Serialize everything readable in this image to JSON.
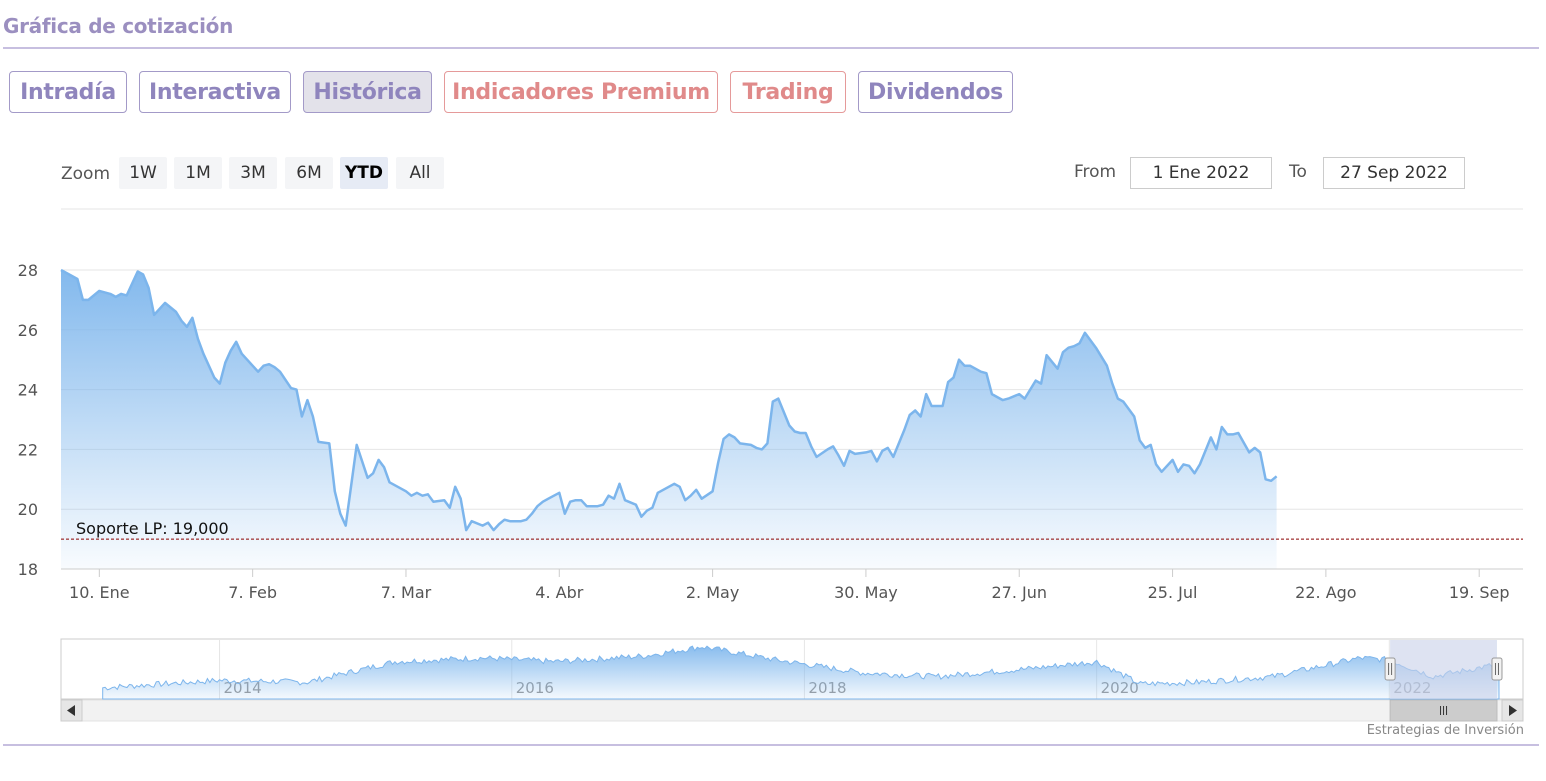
{
  "section_title": "Gráfica de cotización",
  "tabs": [
    {
      "label": "Intradía",
      "active": false,
      "premium": false
    },
    {
      "label": "Interactiva",
      "active": false,
      "premium": false
    },
    {
      "label": "Histórica",
      "active": true,
      "premium": false
    },
    {
      "label": "Indicadores Premium",
      "active": false,
      "premium": true
    },
    {
      "label": "Trading",
      "active": false,
      "premium": true
    },
    {
      "label": "Dividendos",
      "active": false,
      "premium": false
    }
  ],
  "zoom": {
    "label": "Zoom",
    "buttons": [
      "1W",
      "1M",
      "3M",
      "6M",
      "YTD",
      "All"
    ],
    "selected": "YTD"
  },
  "range": {
    "from_label": "From",
    "from_value": "1 Ene 2022",
    "to_label": "To",
    "to_value": "27 Sep 2022"
  },
  "colors": {
    "line": "#7cb5ec",
    "support_line": "#8b0000",
    "navigator_mask": "#c8d0ea"
  },
  "chart_data": {
    "type": "area",
    "title": "",
    "xlabel": "",
    "ylabel": "",
    "ylim": [
      18,
      28
    ],
    "yticks": [
      18,
      20,
      22,
      24,
      26,
      28
    ],
    "x_range": [
      "2022-01-03",
      "2022-09-27"
    ],
    "xtick_labels": [
      {
        "date": "2022-01-10",
        "label": "10. Ene"
      },
      {
        "date": "2022-02-07",
        "label": "7. Feb"
      },
      {
        "date": "2022-03-07",
        "label": "7. Mar"
      },
      {
        "date": "2022-04-04",
        "label": "4. Abr"
      },
      {
        "date": "2022-05-02",
        "label": "2. May"
      },
      {
        "date": "2022-05-30",
        "label": "30. May"
      },
      {
        "date": "2022-06-27",
        "label": "27. Jun"
      },
      {
        "date": "2022-07-25",
        "label": "25. Jul"
      },
      {
        "date": "2022-08-22",
        "label": "22. Ago"
      },
      {
        "date": "2022-09-19",
        "label": "19. Sep"
      }
    ],
    "grid": true,
    "series": [
      {
        "name": "",
        "points": [
          [
            "2022-01-03",
            28.0
          ],
          [
            "2022-01-04",
            27.9
          ],
          [
            "2022-01-05",
            27.8
          ],
          [
            "2022-01-06",
            27.7
          ],
          [
            "2022-01-07",
            27.0
          ],
          [
            "2022-01-08",
            27.0
          ],
          [
            "2022-01-10",
            27.3
          ],
          [
            "2022-01-11",
            27.25
          ],
          [
            "2022-01-12",
            27.2
          ],
          [
            "2022-01-13",
            27.1
          ],
          [
            "2022-01-14",
            27.2
          ],
          [
            "2022-01-15",
            27.15
          ],
          [
            "2022-01-17",
            27.95
          ],
          [
            "2022-01-18",
            27.85
          ],
          [
            "2022-01-19",
            27.4
          ],
          [
            "2022-01-20",
            26.5
          ],
          [
            "2022-01-21",
            26.7
          ],
          [
            "2022-01-22",
            26.9
          ],
          [
            "2022-01-24",
            26.6
          ],
          [
            "2022-01-25",
            26.3
          ],
          [
            "2022-01-26",
            26.1
          ],
          [
            "2022-01-27",
            26.4
          ],
          [
            "2022-01-28",
            25.7
          ],
          [
            "2022-01-29",
            25.2
          ],
          [
            "2022-01-31",
            24.4
          ],
          [
            "2022-02-01",
            24.2
          ],
          [
            "2022-02-02",
            24.9
          ],
          [
            "2022-02-03",
            25.3
          ],
          [
            "2022-02-04",
            25.6
          ],
          [
            "2022-02-05",
            25.2
          ],
          [
            "2022-02-07",
            24.8
          ],
          [
            "2022-02-08",
            24.6
          ],
          [
            "2022-02-09",
            24.8
          ],
          [
            "2022-02-10",
            24.85
          ],
          [
            "2022-02-11",
            24.75
          ],
          [
            "2022-02-12",
            24.6
          ],
          [
            "2022-02-14",
            24.05
          ],
          [
            "2022-02-15",
            24.0
          ],
          [
            "2022-02-16",
            23.1
          ],
          [
            "2022-02-17",
            23.65
          ],
          [
            "2022-02-18",
            23.1
          ],
          [
            "2022-02-19",
            22.25
          ],
          [
            "2022-02-21",
            22.2
          ],
          [
            "2022-02-22",
            20.6
          ],
          [
            "2022-02-23",
            19.85
          ],
          [
            "2022-02-24",
            19.45
          ],
          [
            "2022-02-25",
            20.8
          ],
          [
            "2022-02-26",
            22.15
          ],
          [
            "2022-02-28",
            21.05
          ],
          [
            "2022-03-01",
            21.2
          ],
          [
            "2022-03-02",
            21.65
          ],
          [
            "2022-03-03",
            21.4
          ],
          [
            "2022-03-04",
            20.9
          ],
          [
            "2022-03-07",
            20.6
          ],
          [
            "2022-03-08",
            20.45
          ],
          [
            "2022-03-09",
            20.55
          ],
          [
            "2022-03-10",
            20.45
          ],
          [
            "2022-03-11",
            20.5
          ],
          [
            "2022-03-12",
            20.25
          ],
          [
            "2022-03-14",
            20.3
          ],
          [
            "2022-03-15",
            20.05
          ],
          [
            "2022-03-16",
            20.75
          ],
          [
            "2022-03-17",
            20.35
          ],
          [
            "2022-03-18",
            19.3
          ],
          [
            "2022-03-19",
            19.6
          ],
          [
            "2022-03-21",
            19.45
          ],
          [
            "2022-03-22",
            19.55
          ],
          [
            "2022-03-23",
            19.3
          ],
          [
            "2022-03-24",
            19.5
          ],
          [
            "2022-03-25",
            19.65
          ],
          [
            "2022-03-26",
            19.6
          ],
          [
            "2022-03-28",
            19.6
          ],
          [
            "2022-03-29",
            19.65
          ],
          [
            "2022-03-30",
            19.85
          ],
          [
            "2022-03-31",
            20.1
          ],
          [
            "2022-04-01",
            20.25
          ],
          [
            "2022-04-02",
            20.35
          ],
          [
            "2022-04-04",
            20.55
          ],
          [
            "2022-04-05",
            19.85
          ],
          [
            "2022-04-06",
            20.25
          ],
          [
            "2022-04-07",
            20.3
          ],
          [
            "2022-04-08",
            20.3
          ],
          [
            "2022-04-09",
            20.1
          ],
          [
            "2022-04-11",
            20.1
          ],
          [
            "2022-04-12",
            20.15
          ],
          [
            "2022-04-13",
            20.45
          ],
          [
            "2022-04-14",
            20.35
          ],
          [
            "2022-04-15",
            20.85
          ],
          [
            "2022-04-16",
            20.3
          ],
          [
            "2022-04-18",
            20.15
          ],
          [
            "2022-04-19",
            19.75
          ],
          [
            "2022-04-20",
            19.95
          ],
          [
            "2022-04-21",
            20.05
          ],
          [
            "2022-04-22",
            20.55
          ],
          [
            "2022-04-23",
            20.65
          ],
          [
            "2022-04-25",
            20.85
          ],
          [
            "2022-04-26",
            20.75
          ],
          [
            "2022-04-27",
            20.3
          ],
          [
            "2022-04-28",
            20.45
          ],
          [
            "2022-04-29",
            20.65
          ],
          [
            "2022-04-30",
            20.35
          ],
          [
            "2022-05-02",
            20.6
          ],
          [
            "2022-05-03",
            21.55
          ],
          [
            "2022-05-04",
            22.35
          ],
          [
            "2022-05-05",
            22.5
          ],
          [
            "2022-05-06",
            22.4
          ],
          [
            "2022-05-07",
            22.2
          ],
          [
            "2022-05-09",
            22.15
          ],
          [
            "2022-05-10",
            22.05
          ],
          [
            "2022-05-11",
            22.0
          ],
          [
            "2022-05-12",
            22.2
          ],
          [
            "2022-05-13",
            23.6
          ],
          [
            "2022-05-14",
            23.7
          ],
          [
            "2022-05-16",
            22.8
          ],
          [
            "2022-05-17",
            22.6
          ],
          [
            "2022-05-18",
            22.55
          ],
          [
            "2022-05-19",
            22.55
          ],
          [
            "2022-05-20",
            22.1
          ],
          [
            "2022-05-21",
            21.75
          ],
          [
            "2022-05-23",
            22.0
          ],
          [
            "2022-05-24",
            22.1
          ],
          [
            "2022-05-25",
            21.8
          ],
          [
            "2022-05-26",
            21.45
          ],
          [
            "2022-05-27",
            21.95
          ],
          [
            "2022-05-28",
            21.85
          ],
          [
            "2022-05-30",
            21.9
          ],
          [
            "2022-05-31",
            21.95
          ],
          [
            "2022-06-01",
            21.6
          ],
          [
            "2022-06-02",
            21.95
          ],
          [
            "2022-06-03",
            22.05
          ],
          [
            "2022-06-04",
            21.75
          ],
          [
            "2022-06-06",
            22.65
          ],
          [
            "2022-06-07",
            23.15
          ],
          [
            "2022-06-08",
            23.3
          ],
          [
            "2022-06-09",
            23.1
          ],
          [
            "2022-06-10",
            23.85
          ],
          [
            "2022-06-11",
            23.45
          ],
          [
            "2022-06-13",
            23.45
          ],
          [
            "2022-06-14",
            24.25
          ],
          [
            "2022-06-15",
            24.4
          ],
          [
            "2022-06-16",
            25.0
          ],
          [
            "2022-06-17",
            24.8
          ],
          [
            "2022-06-18",
            24.8
          ],
          [
            "2022-06-20",
            24.6
          ],
          [
            "2022-06-21",
            24.55
          ],
          [
            "2022-06-22",
            23.85
          ],
          [
            "2022-06-23",
            23.75
          ],
          [
            "2022-06-24",
            23.65
          ],
          [
            "2022-06-25",
            23.7
          ],
          [
            "2022-06-27",
            23.85
          ],
          [
            "2022-06-28",
            23.7
          ],
          [
            "2022-06-29",
            24.0
          ],
          [
            "2022-06-30",
            24.3
          ],
          [
            "2022-07-01",
            24.2
          ],
          [
            "2022-07-02",
            25.15
          ],
          [
            "2022-07-04",
            24.7
          ],
          [
            "2022-07-05",
            25.25
          ],
          [
            "2022-07-06",
            25.4
          ],
          [
            "2022-07-07",
            25.45
          ],
          [
            "2022-07-08",
            25.55
          ],
          [
            "2022-07-09",
            25.9
          ],
          [
            "2022-07-11",
            25.4
          ],
          [
            "2022-07-12",
            25.1
          ],
          [
            "2022-07-13",
            24.8
          ],
          [
            "2022-07-14",
            24.2
          ],
          [
            "2022-07-15",
            23.7
          ],
          [
            "2022-07-16",
            23.6
          ],
          [
            "2022-07-18",
            23.1
          ],
          [
            "2022-07-19",
            22.3
          ],
          [
            "2022-07-20",
            22.05
          ],
          [
            "2022-07-21",
            22.15
          ],
          [
            "2022-07-22",
            21.5
          ],
          [
            "2022-07-23",
            21.25
          ],
          [
            "2022-07-25",
            21.65
          ],
          [
            "2022-07-26",
            21.25
          ],
          [
            "2022-07-27",
            21.5
          ],
          [
            "2022-07-28",
            21.45
          ],
          [
            "2022-07-29",
            21.2
          ],
          [
            "2022-07-30",
            21.5
          ],
          [
            "2022-08-01",
            22.4
          ],
          [
            "2022-08-02",
            22.0
          ],
          [
            "2022-08-03",
            22.75
          ],
          [
            "2022-08-04",
            22.5
          ],
          [
            "2022-08-05",
            22.5
          ],
          [
            "2022-08-06",
            22.55
          ],
          [
            "2022-08-08",
            21.9
          ],
          [
            "2022-08-09",
            22.05
          ],
          [
            "2022-08-10",
            21.9
          ],
          [
            "2022-08-11",
            21.0
          ],
          [
            "2022-08-12",
            20.95
          ],
          [
            "2022-08-13",
            21.1
          ]
        ]
      }
    ],
    "annotations": [
      {
        "label": "Soporte LP: 19,000",
        "value": 19.0
      }
    ],
    "navigator": {
      "x_range": [
        "2012-12-01",
        "2022-12-01"
      ],
      "tick_labels": [
        "2014",
        "2016",
        "2018",
        "2020",
        "2022"
      ],
      "selection": [
        "2022-01-03",
        "2022-09-27"
      ]
    }
  },
  "credit": "Estrategias de Inversión"
}
